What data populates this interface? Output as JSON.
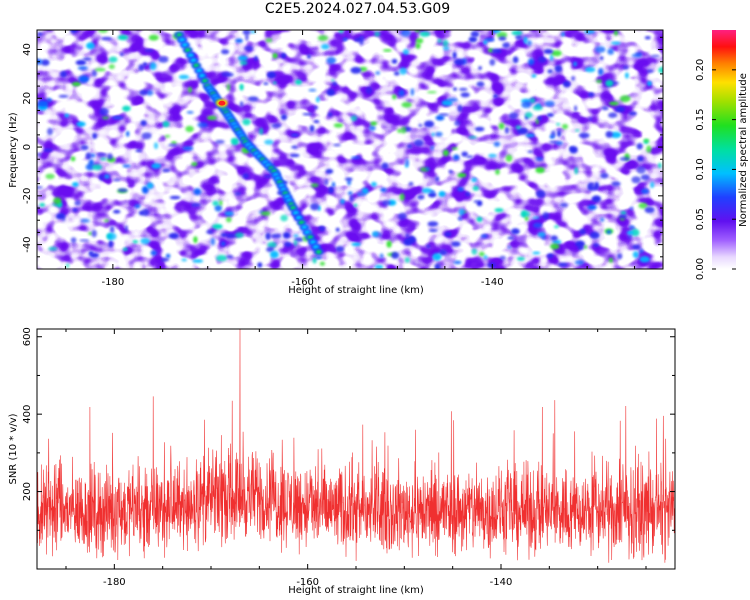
{
  "title": "C2E5.2024.027.04.53.G09",
  "chart_data": [
    {
      "type": "heatmap",
      "xlabel": "Height of straight line (km)",
      "ylabel": "Frequency (Hz)",
      "xlim": [
        -188,
        -122
      ],
      "ylim": [
        -50,
        48
      ],
      "x_ticks": [
        -180,
        -160,
        -140
      ],
      "y_ticks": [
        40,
        20,
        0,
        -20,
        -40
      ],
      "colorbar": {
        "label": "Normalized spectral amplitude",
        "range": [
          0,
          0.24
        ],
        "ticks": [
          "0.00",
          "0.05",
          "0.10",
          "0.15",
          "0.20"
        ]
      },
      "ridge": {
        "points": [
          [
            -173,
            46
          ],
          [
            -170,
            25
          ],
          [
            -168,
            14
          ],
          [
            -166,
            2
          ],
          [
            -163,
            -10
          ],
          [
            -161,
            -25
          ],
          [
            -158,
            -45
          ]
        ],
        "peak": {
          "x": -168.5,
          "y": 18,
          "value": 0.24
        }
      },
      "grid": false,
      "legend": "none"
    },
    {
      "type": "line",
      "xlabel": "Height of straight line (km)",
      "ylabel": "SNR (10 * v/v)",
      "xlim": [
        -188,
        -122
      ],
      "ylim": [
        0,
        620
      ],
      "x_ticks": [
        -180,
        -160,
        -140
      ],
      "y_ticks": [
        600,
        400,
        200
      ],
      "series_color": "#f03030",
      "baseline": 150,
      "typical_peak": 300,
      "max": {
        "x": -167,
        "y": 620
      },
      "grid": false,
      "legend": "none"
    }
  ]
}
